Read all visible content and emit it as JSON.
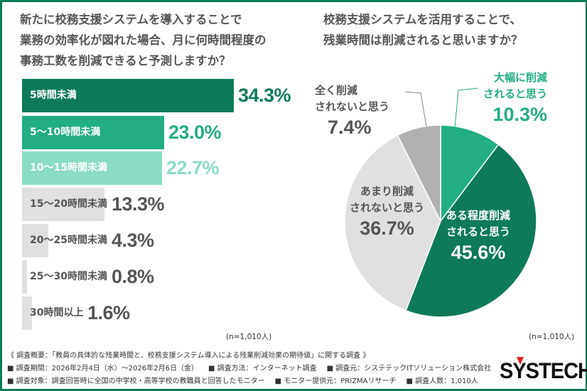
{
  "left_title": "新たに校務支援システムを導入することで\n業務の効率化が図れた場合、月に何時間程度の\n事務工数を削減できると予測しますか？",
  "right_title": "校務支援システムを活用することで、\n残業時間は削減されると思いますか？",
  "colors": {
    "dark": "#0e7a5a",
    "mid": "#23ad84",
    "light": "#8adcc4",
    "gray_bar": "#e0e0e0",
    "gray_dark": "#b0b0b0",
    "frame": "#0e7a5a"
  },
  "chart_data": [
    {
      "type": "bar",
      "orientation": "horizontal",
      "categories": [
        "5時間未満",
        "5〜10時間未満",
        "10〜15時間未満",
        "15〜20時間未満",
        "20〜25時間未満",
        "25〜30時間未満",
        "30時間以上"
      ],
      "values": [
        34.3,
        23.0,
        22.7,
        13.3,
        4.3,
        0.8,
        1.6
      ],
      "value_labels": [
        "34.3%",
        "23.0%",
        "22.7%",
        "13.3%",
        "4.3%",
        "0.8%",
        "1.6%"
      ],
      "bar_colors": [
        "#0e7a5a",
        "#23ad84",
        "#8adcc4",
        "#e0e0e0",
        "#e0e0e0",
        "#e0e0e0",
        "#e0e0e0"
      ],
      "value_colors": [
        "#0e7a5a",
        "#23ad84",
        "#8adcc4",
        "#555555",
        "#555555",
        "#555555",
        "#555555"
      ],
      "label_colors": [
        "#ffffff",
        "#ffffff",
        "#ffffff",
        "#555555",
        "#555555",
        "#555555",
        "#555555"
      ],
      "note": "(n=1,010人)"
    },
    {
      "type": "pie",
      "categories": [
        "大幅に削減されると思う",
        "ある程度削減されると思う",
        "あまり削減されないと思う",
        "全く削減されないと思う"
      ],
      "labels": [
        "大幅に削減\nされると思う",
        "ある程度削減\nされると思う",
        "あまり削減\nされないと思う",
        "全く削減\nされないと思う"
      ],
      "values": [
        10.3,
        45.6,
        36.7,
        7.4
      ],
      "value_labels": [
        "10.3%",
        "45.6%",
        "36.7%",
        "7.4%"
      ],
      "colors": [
        "#23ad84",
        "#0e7a5a",
        "#e0e0e0",
        "#b0b0b0"
      ],
      "note": "(n=1,010人)"
    }
  ],
  "footer": {
    "line1": "《 調査概要：「教員の具体的な残業時間と、校務支援システム導入による残業削減効果の期待値」に関する調査 》",
    "line2": [
      "■ 調査期間：2026年2月4日（水）〜2026年2月6日（金）",
      "■ 調査方法：インターネット調査",
      "■ 調査元：システテックITソリューション株式会社"
    ],
    "line3": [
      "■ 調査対象：調査回答時に全国の中学校・高等学校の教職員と回答したモニター",
      "■ モニター提供元：PRIZMAリサーチ",
      "■ 調査人数：1,010人"
    ]
  },
  "logo": "SYSTECH"
}
